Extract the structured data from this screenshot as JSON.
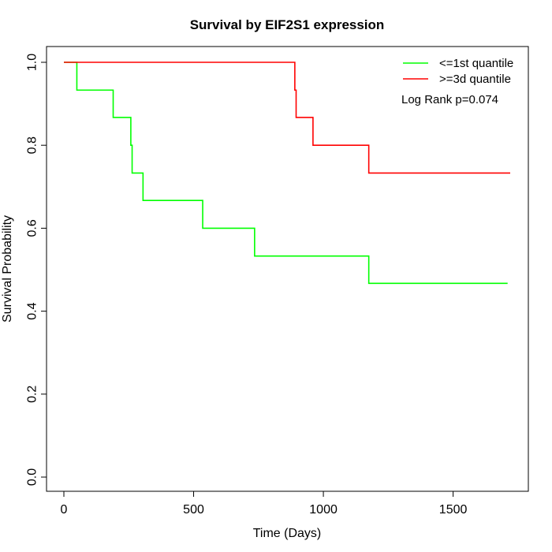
{
  "chart_data": {
    "type": "line",
    "title": "Survival by EIF2S1 expression",
    "xlabel": "Time (Days)",
    "ylabel": "Survival Probability",
    "xlim": [
      0,
      1800
    ],
    "ylim": [
      0,
      1
    ],
    "xticks": [
      0,
      500,
      1000,
      1500
    ],
    "yticks": [
      0.0,
      0.2,
      0.4,
      0.6,
      0.8,
      1.0
    ],
    "xtick_labels": [
      "0",
      "500",
      "1000",
      "1500"
    ],
    "ytick_labels": [
      "0.0",
      "0.2",
      "0.4",
      "0.6",
      "0.8",
      "1.0"
    ],
    "grid": false,
    "legend": "top-right",
    "annotation": "Log Rank p=0.074",
    "series": [
      {
        "name": "<=1st quantile",
        "color": "#00ff00",
        "step": true,
        "x": [
          0,
          50,
          190,
          258,
          263,
          305,
          535,
          735,
          1175,
          1710
        ],
        "y": [
          1.0,
          0.933,
          0.867,
          0.8,
          0.733,
          0.667,
          0.6,
          0.533,
          0.467,
          0.467
        ]
      },
      {
        "name": ">=3d quantile",
        "color": "#ff0000",
        "step": true,
        "x": [
          0,
          890,
          895,
          960,
          1175,
          1720
        ],
        "y": [
          1.0,
          0.933,
          0.867,
          0.8,
          0.733,
          0.733
        ]
      }
    ]
  }
}
